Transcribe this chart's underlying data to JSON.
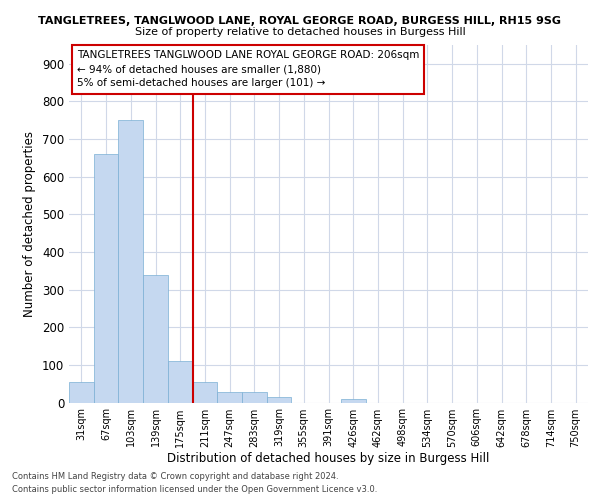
{
  "title_line1": "TANGLETREES, TANGLWOOD LANE, ROYAL GEORGE ROAD, BURGESS HILL, RH15 9SG",
  "title_line2": "Size of property relative to detached houses in Burgess Hill",
  "xlabel": "Distribution of detached houses by size in Burgess Hill",
  "ylabel": "Number of detached properties",
  "categories": [
    "31sqm",
    "67sqm",
    "103sqm",
    "139sqm",
    "175sqm",
    "211sqm",
    "247sqm",
    "283sqm",
    "319sqm",
    "355sqm",
    "391sqm",
    "426sqm",
    "462sqm",
    "498sqm",
    "534sqm",
    "570sqm",
    "606sqm",
    "642sqm",
    "678sqm",
    "714sqm",
    "750sqm"
  ],
  "values": [
    55,
    660,
    750,
    338,
    110,
    55,
    28,
    28,
    15,
    0,
    0,
    10,
    0,
    0,
    0,
    0,
    0,
    0,
    0,
    0,
    0
  ],
  "bar_color": "#c5d8f0",
  "bar_edge_color": "#7aafd4",
  "property_line_x": 5.0,
  "property_line_label": "TANGLETREES TANGLWOOD LANE ROYAL GEORGE ROAD: 206sqm",
  "annotation_line1": "← 94% of detached houses are smaller (1,880)",
  "annotation_line2": "5% of semi-detached houses are larger (101) →",
  "vline_color": "#cc0000",
  "box_edge_color": "#cc0000",
  "ylim": [
    0,
    950
  ],
  "yticks": [
    0,
    100,
    200,
    300,
    400,
    500,
    600,
    700,
    800,
    900
  ],
  "footer_line1": "Contains HM Land Registry data © Crown copyright and database right 2024.",
  "footer_line2": "Contains public sector information licensed under the Open Government Licence v3.0.",
  "background_color": "#ffffff",
  "grid_color": "#d0d8e8"
}
